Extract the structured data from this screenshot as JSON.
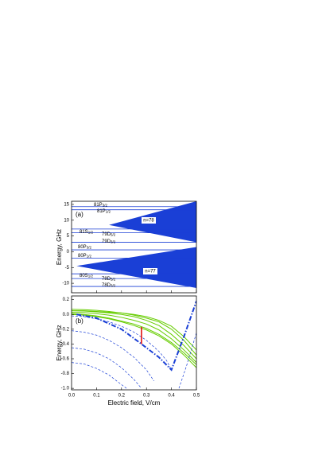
{
  "chart_data": [
    {
      "type": "levels",
      "panel": "(a)",
      "ylabel": "Energy, GHz",
      "xlim": [
        0,
        0.5
      ],
      "xticks": [
        0,
        0.1,
        0.2,
        0.3,
        0.4,
        0.5
      ],
      "ylim": [
        -13,
        16
      ],
      "yticks": [
        -10,
        -5,
        0,
        5,
        10,
        15
      ],
      "color": "#1a3fd6",
      "levels": [
        {
          "name": "81P",
          "sub": "3/2",
          "value": 14.3
        },
        {
          "name": "81P",
          "sub": "1/2",
          "value": 13.3
        },
        {
          "name": "81S",
          "sub": "1/2",
          "value": 7.2
        },
        {
          "name": "79D",
          "sub": "5/2",
          "value": 6.0
        },
        {
          "name": "79D",
          "sub": "3/2",
          "value": 3.0
        },
        {
          "name": "80P",
          "sub": "3/2",
          "value": 0.6
        },
        {
          "name": "80P",
          "sub": "1/2",
          "value": -2.0
        },
        {
          "name": "80S",
          "sub": "1/2",
          "value": -7.0
        },
        {
          "name": "78D",
          "sub": "5/2",
          "value": -8.5
        },
        {
          "name": "78D",
          "sub": "3/2",
          "value": -11.0
        }
      ],
      "manifolds": [
        {
          "label": "n=78",
          "x": [
            0.15,
            0.5
          ],
          "upper": [
            8.5,
            16
          ],
          "lower": [
            8.5,
            3
          ]
        },
        {
          "label": "n=77",
          "x": [
            0.02,
            0.5
          ],
          "upper": [
            -4.5,
            1.5
          ],
          "lower": [
            -4.5,
            -11.5
          ]
        }
      ]
    },
    {
      "type": "line",
      "panel": "(b)",
      "ylabel": "Energy, GHz",
      "xlabel": "Electric field, V/cm",
      "xlim": [
        0,
        0.5
      ],
      "xticks": [
        {
          "value": 0,
          "label": "0.0"
        },
        0.1,
        0.2,
        0.3,
        0.4,
        0.5
      ],
      "ylim": [
        -1.02,
        0.25
      ],
      "yticks": [
        {
          "value": -1,
          "label": "-1.0"
        },
        -0.8,
        -0.6,
        -0.4,
        -0.2,
        {
          "value": 0,
          "label": "0.0"
        },
        0.2
      ],
      "series": [
        {
          "color": "#66cc00",
          "dash": "solid",
          "width": 1,
          "x": [
            0,
            0.05,
            0.1,
            0.15,
            0.2,
            0.25,
            0.3,
            0.35,
            0.4,
            0.45,
            0.5
          ],
          "values": [
            0.07,
            0.065,
            0.055,
            0.04,
            0.02,
            -0.01,
            -0.05,
            -0.1,
            -0.2,
            -0.35,
            -0.55
          ]
        },
        {
          "color": "#66cc00",
          "dash": "solid",
          "width": 1,
          "x": [
            0,
            0.05,
            0.1,
            0.15,
            0.2,
            0.25,
            0.3,
            0.35,
            0.4,
            0.45,
            0.5
          ],
          "values": [
            0.05,
            0.045,
            0.035,
            0.02,
            0,
            -0.03,
            -0.08,
            -0.15,
            -0.27,
            -0.42,
            -0.6
          ]
        },
        {
          "color": "#66cc00",
          "dash": "solid",
          "width": 1,
          "x": [
            0,
            0.05,
            0.1,
            0.15,
            0.2,
            0.25,
            0.3,
            0.35,
            0.4,
            0.45,
            0.5
          ],
          "values": [
            0.03,
            0.025,
            0.01,
            -0.01,
            -0.04,
            -0.08,
            -0.13,
            -0.21,
            -0.33,
            -0.48,
            -0.65
          ]
        },
        {
          "color": "#66cc00",
          "dash": "solid",
          "width": 1,
          "x": [
            0,
            0.05,
            0.1,
            0.15,
            0.2,
            0.25,
            0.3,
            0.35,
            0.4,
            0.45,
            0.5
          ],
          "values": [
            0.01,
            0,
            -0.02,
            -0.05,
            -0.09,
            -0.13,
            -0.19,
            -0.27,
            -0.38,
            -0.52,
            -0.68
          ]
        },
        {
          "color": "#66cc00",
          "dash": "solid",
          "width": 1,
          "x": [
            0,
            0.05,
            0.1,
            0.15,
            0.2,
            0.25,
            0.3,
            0.35,
            0.4,
            0.45,
            0.5
          ],
          "values": [
            0.05,
            0.05,
            0.04,
            0.03,
            0.02,
            0,
            -0.03,
            -0.08,
            -0.16,
            -0.3,
            -0.48
          ]
        },
        {
          "color": "#66cc00",
          "dash": "solid",
          "width": 1,
          "x": [
            0,
            0.05,
            0.1,
            0.15,
            0.2,
            0.25,
            0.3,
            0.35,
            0.4,
            0.45,
            0.5
          ],
          "values": [
            0,
            -0.01,
            -0.03,
            -0.06,
            -0.1,
            -0.15,
            -0.21,
            -0.29,
            -0.4,
            -0.55,
            -0.72
          ]
        },
        {
          "color": "#1a3fd6",
          "dash": "dashed",
          "width": 0.7,
          "x": [
            0,
            0.05,
            0.1,
            0.15,
            0.2,
            0.25,
            0.3,
            0.35,
            0.38,
            0.4
          ],
          "values": [
            -0.02,
            -0.03,
            -0.06,
            -0.1,
            -0.16,
            -0.24,
            -0.35,
            -0.5,
            -0.62,
            -0.75
          ]
        },
        {
          "color": "#1a3fd6",
          "dash": "dashed",
          "width": 0.7,
          "x": [
            0,
            0.05,
            0.1,
            0.15,
            0.2,
            0.25,
            0.3,
            0.33
          ],
          "values": [
            -0.22,
            -0.24,
            -0.28,
            -0.35,
            -0.45,
            -0.58,
            -0.75,
            -0.9
          ]
        },
        {
          "color": "#1a3fd6",
          "dash": "dashed",
          "width": 0.7,
          "x": [
            0,
            0.05,
            0.1,
            0.15,
            0.2,
            0.25,
            0.28
          ],
          "values": [
            -0.45,
            -0.47,
            -0.52,
            -0.6,
            -0.72,
            -0.88,
            -1.0
          ]
        },
        {
          "color": "#1a3fd6",
          "dash": "dashed",
          "width": 0.7,
          "x": [
            0,
            0.05,
            0.1,
            0.15,
            0.2,
            0.22
          ],
          "values": [
            -0.65,
            -0.67,
            -0.73,
            -0.82,
            -0.95,
            -1.0
          ]
        },
        {
          "color": "#1a3fd6",
          "dash": "dashed",
          "width": 0.7,
          "x": [
            0.43,
            0.46,
            0.5
          ],
          "values": [
            -1.0,
            -0.7,
            -0.25
          ]
        },
        {
          "color": "#1a3fd6",
          "dash": "dashdot",
          "width": 2,
          "x": [
            0.02,
            0.1,
            0.2,
            0.28,
            0.35,
            0.4,
            0.45,
            0.5
          ],
          "values": [
            0,
            -0.05,
            -0.2,
            -0.4,
            -0.58,
            -0.75,
            -0.3,
            0.18
          ]
        },
        {
          "color": "#e00000",
          "dash": "solid",
          "width": 1.5,
          "x": [
            0.28,
            0.28
          ],
          "values": [
            -0.17,
            -0.4
          ]
        }
      ]
    }
  ]
}
